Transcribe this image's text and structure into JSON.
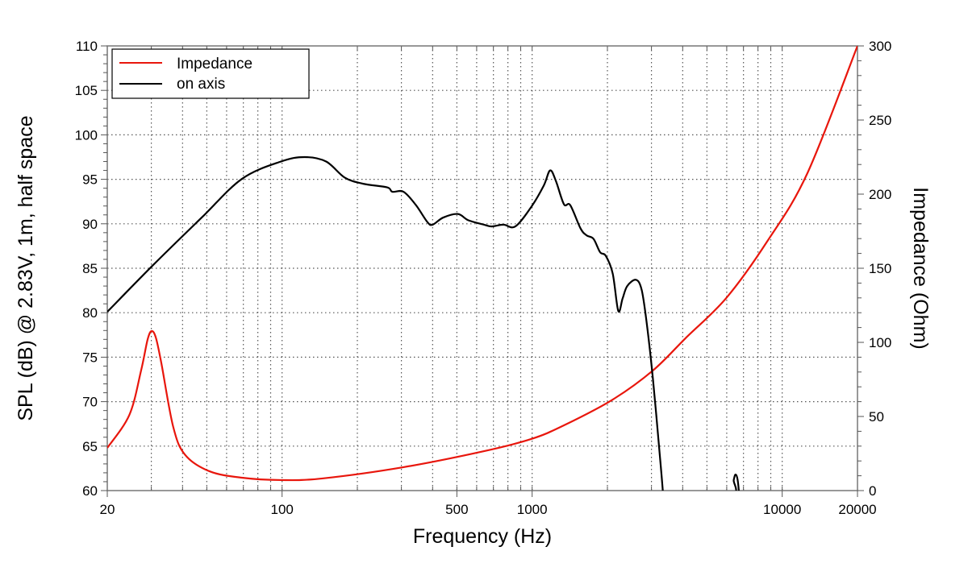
{
  "chart_data": {
    "type": "line",
    "title": "",
    "xlabel": "Frequency (Hz)",
    "ylabel": "SPL (dB) @ 2.83V, 1m, half space",
    "y2label": "Impedance (Ohm)",
    "xscale": "log",
    "xlim": [
      20,
      20000
    ],
    "ylim": [
      60,
      110
    ],
    "y2lim": [
      0,
      300
    ],
    "grid": true,
    "legend_position": "top-left",
    "x_ticks": [
      20,
      100,
      500,
      1000,
      10000,
      20000
    ],
    "x_tick_labels": [
      "20",
      "100",
      "500",
      "1000",
      "10000",
      "20000"
    ],
    "y_ticks": [
      60,
      65,
      70,
      75,
      80,
      85,
      90,
      95,
      100,
      105,
      110
    ],
    "y_tick_labels": [
      "60",
      "65",
      "70",
      "75",
      "80",
      "85",
      "90",
      "95",
      "100",
      "105",
      "110"
    ],
    "y2_ticks": [
      0,
      50,
      100,
      150,
      200,
      250,
      300
    ],
    "y2_tick_labels": [
      "0",
      "50",
      "100",
      "150",
      "200",
      "250",
      "300"
    ],
    "series": [
      {
        "name": "Impedance",
        "axis": "right",
        "color": "#e8160c",
        "x": [
          20,
          24.5,
          27.3,
          29,
          30.1,
          31.3,
          32.9,
          36.7,
          41,
          51.3,
          69,
          99,
          145,
          306,
          642,
          992,
          1340,
          2100,
          3040,
          4100,
          5980,
          8700,
          12600,
          20000
        ],
        "y": [
          28.8,
          51,
          81,
          102,
          107.6,
          103,
          86,
          43,
          24,
          13,
          8.7,
          7.1,
          8.2,
          15.8,
          26.6,
          34.8,
          44,
          61.4,
          81,
          102.7,
          130,
          168,
          214,
          300
        ]
      },
      {
        "name": "on axis",
        "axis": "left",
        "color": "#000000",
        "x": [
          20,
          30.6,
          47.7,
          69.1,
          99,
          123,
          150,
          178,
          211,
          263,
          276,
          306,
          343,
          381,
          400,
          441,
          505,
          555,
          642,
          688,
          768,
          857,
          992,
          1113,
          1180,
          1245,
          1340,
          1420,
          1560,
          1650,
          1760,
          1870,
          1970,
          2100,
          2210,
          2300,
          2400,
          2600,
          2740,
          2870,
          3040,
          3230,
          3330,
          3400,
          6200,
          6400,
          6520,
          6650,
          6800
        ],
        "y": [
          80.1,
          85.4,
          90.7,
          95.05,
          97.0,
          97.5,
          97.0,
          95.2,
          94.5,
          94.1,
          93.6,
          93.6,
          92.1,
          90.2,
          89.9,
          90.7,
          91.1,
          90.4,
          89.9,
          89.7,
          89.9,
          89.7,
          91.9,
          94.3,
          96.0,
          94.8,
          92.2,
          92.1,
          89.5,
          88.7,
          88.3,
          86.8,
          86.4,
          84.4,
          80.2,
          81.6,
          83.0,
          83.7,
          82.6,
          78.9,
          72.6,
          64.4,
          60,
          56,
          59,
          61.2,
          61.8,
          61,
          58
        ]
      }
    ]
  }
}
